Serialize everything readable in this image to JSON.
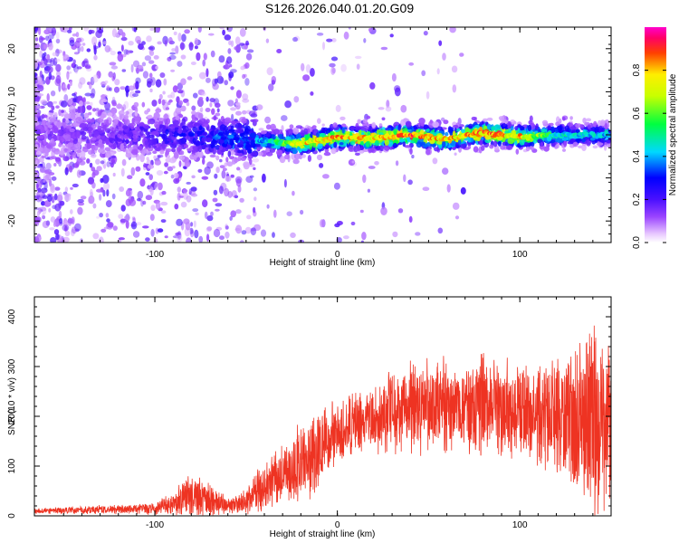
{
  "title": "S126.2026.040.01.20.G09",
  "chart_data": [
    {
      "type": "heatmap",
      "title": "S126.2026.040.01.20.G09",
      "xlabel": "Height of straight line (km)",
      "ylabel": "Frequency (Hz)",
      "xlim": [
        -166,
        150
      ],
      "ylim": [
        -25,
        25
      ],
      "x_ticks": [
        -100,
        0,
        100
      ],
      "y_ticks": [
        -20,
        -10,
        0,
        10,
        20
      ],
      "colorbar": {
        "label": "Normalized spectral amplitude",
        "range": [
          0.0,
          1.0
        ],
        "ticks": [
          0.0,
          0.2,
          0.4,
          0.6,
          0.8
        ],
        "tick_labels": [
          "0.0",
          "0.2",
          "0.4",
          "0.6",
          "0.8"
        ]
      },
      "ridge": {
        "description_points_x": [
          -160,
          -120,
          -80,
          -40,
          -20,
          0,
          20,
          40,
          60,
          80,
          100,
          120,
          150
        ],
        "center_frequency": [
          0,
          0,
          0,
          -1.5,
          -2,
          -0.5,
          -0.8,
          0,
          -1,
          0.5,
          -0.5,
          0,
          0
        ],
        "peak_amplitude": [
          0.15,
          0.2,
          0.3,
          0.45,
          0.8,
          0.9,
          0.85,
          0.9,
          0.85,
          0.9,
          0.85,
          0.5,
          0.45
        ]
      }
    },
    {
      "type": "line",
      "xlabel": "Height of straight line (km)",
      "ylabel": "SNR (10 * v/v)",
      "xlim": [
        -166,
        150
      ],
      "ylim": [
        0,
        440
      ],
      "x_ticks": [
        -100,
        0,
        100
      ],
      "y_ticks": [
        0,
        100,
        200,
        300,
        400
      ],
      "series": [
        {
          "name": "SNR",
          "color": "#ee3322",
          "envelope_x": [
            -166,
            -130,
            -100,
            -90,
            -80,
            -70,
            -60,
            -50,
            -40,
            -30,
            -20,
            -10,
            0,
            10,
            20,
            30,
            40,
            50,
            60,
            70,
            80,
            90,
            100,
            110,
            120,
            130,
            140,
            150
          ],
          "envelope_mean": [
            10,
            12,
            15,
            25,
            40,
            30,
            20,
            30,
            60,
            80,
            110,
            140,
            160,
            180,
            200,
            210,
            220,
            225,
            220,
            215,
            220,
            215,
            210,
            205,
            200,
            200,
            180,
            190
          ],
          "envelope_spread": [
            5,
            8,
            10,
            20,
            45,
            30,
            15,
            25,
            40,
            55,
            70,
            80,
            60,
            55,
            60,
            70,
            80,
            80,
            80,
            80,
            90,
            90,
            85,
            90,
            110,
            140,
            170,
            170
          ]
        }
      ]
    }
  ]
}
